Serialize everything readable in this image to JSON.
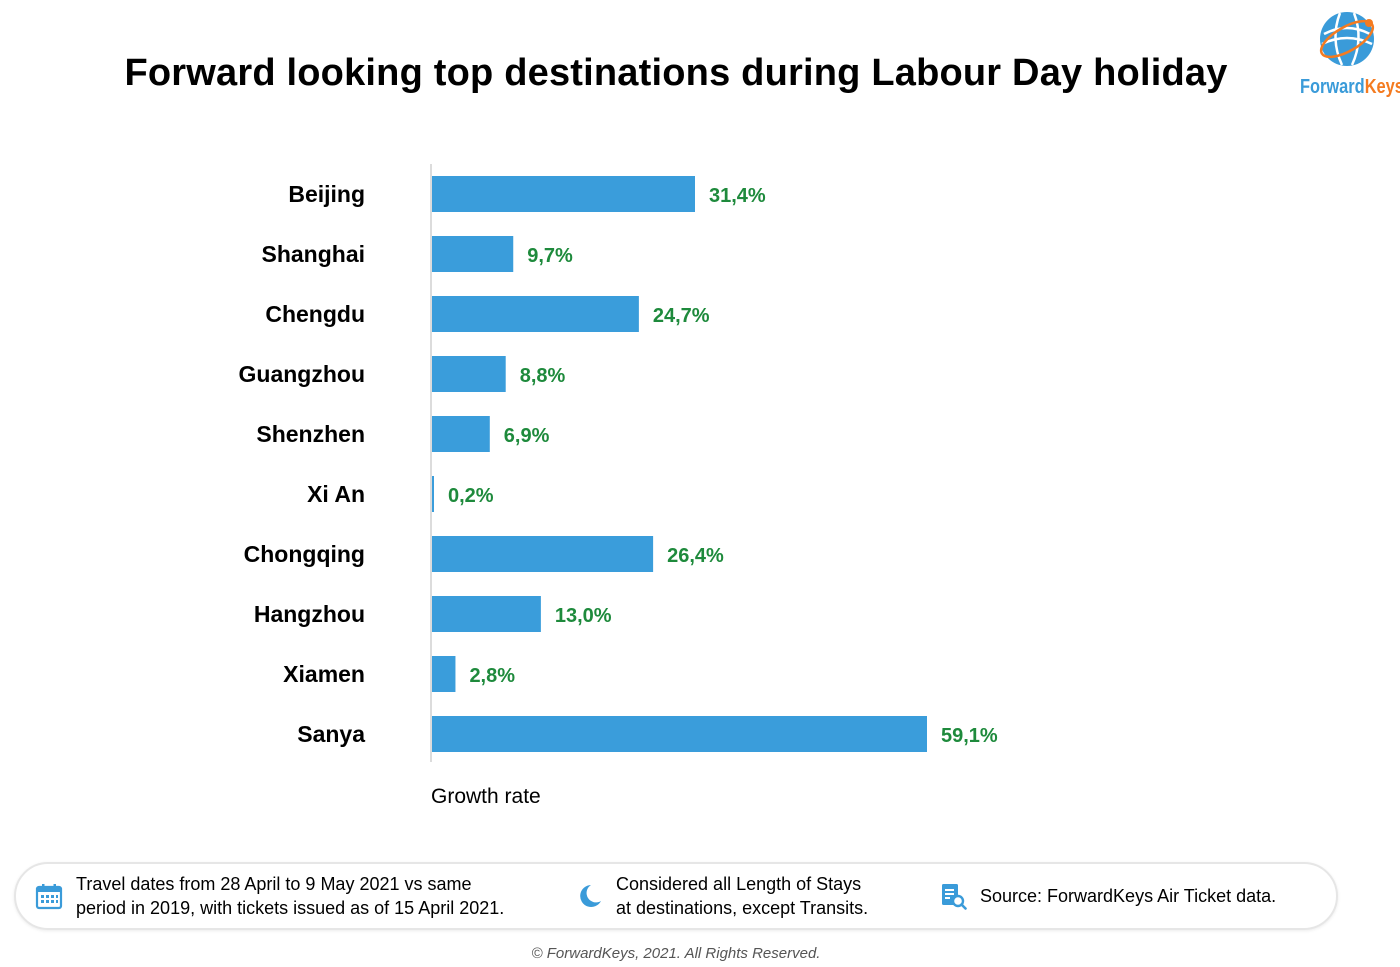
{
  "title": "Forward looking top destinations during Labour Day holiday",
  "logo": {
    "brand_part1": "Forward",
    "brand_part2": "Keys",
    "icon": "globe-icon"
  },
  "colors": {
    "bar": "#3a9ddb",
    "value_label": "#1e8a3c",
    "logo_blue": "#3a9bd9",
    "logo_orange": "#f47b20"
  },
  "chart_data": {
    "type": "bar",
    "orientation": "horizontal",
    "categories": [
      "Beijing",
      "Shanghai",
      "Chengdu",
      "Guangzhou",
      "Shenzhen",
      "Xi An",
      "Chongqing",
      "Hangzhou",
      "Xiamen",
      "Sanya"
    ],
    "values": [
      31.4,
      9.7,
      24.7,
      8.8,
      6.9,
      0.2,
      26.4,
      13.0,
      2.8,
      59.1
    ],
    "value_labels": [
      "31,4%",
      "9,7%",
      "24,7%",
      "8,8%",
      "6,9%",
      "0,2%",
      "26,4%",
      "13,0%",
      "2,8%",
      "59,1%"
    ],
    "xlabel": "Growth rate",
    "ylabel": "",
    "xlim": [
      0,
      59.1
    ],
    "grid": false,
    "legend": "none"
  },
  "info_bar": {
    "items": [
      {
        "icon": "calendar-icon",
        "lines": [
          "Travel dates from 28 April to 9 May 2021 vs same",
          "period in 2019, with tickets issued as of 15 April 2021."
        ]
      },
      {
        "icon": "moon-icon",
        "lines": [
          "Considered all Length of Stays",
          "at destinations, except Transits."
        ]
      },
      {
        "icon": "document-search-icon",
        "lines": [
          "Source: ForwardKeys Air Ticket data."
        ]
      }
    ]
  },
  "footer": "© ForwardKeys, 2021. All Rights Reserved."
}
